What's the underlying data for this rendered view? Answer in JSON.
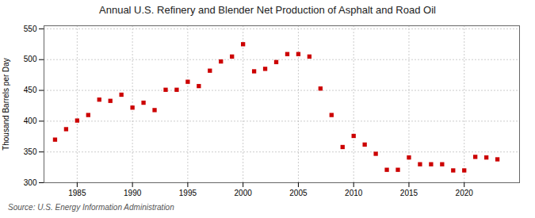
{
  "chart_data": {
    "type": "scatter",
    "title": "Annual U.S. Refinery and Blender Net Production of Asphalt and Road Oil",
    "ylabel": "Thousand Barrels per Day",
    "source": "Source: U.S. Energy Information Administration",
    "x": [
      1983,
      1984,
      1985,
      1986,
      1987,
      1988,
      1989,
      1990,
      1991,
      1992,
      1993,
      1994,
      1995,
      1996,
      1997,
      1998,
      1999,
      2000,
      2001,
      2002,
      2003,
      2004,
      2005,
      2006,
      2007,
      2008,
      2009,
      2010,
      2011,
      2012,
      2013,
      2014,
      2015,
      2016,
      2017,
      2018,
      2019,
      2020,
      2021,
      2022,
      2023
    ],
    "values": [
      370,
      387,
      401,
      410,
      435,
      433,
      443,
      422,
      430,
      418,
      451,
      451,
      464,
      457,
      482,
      497,
      505,
      525,
      481,
      485,
      496,
      509,
      509,
      505,
      453,
      410,
      358,
      376,
      362,
      347,
      321,
      321,
      341,
      330,
      330,
      330,
      320,
      320,
      342,
      341,
      338
    ],
    "color": "#cc0000",
    "marker": "square",
    "xlim": [
      1982,
      2025
    ],
    "ylim": [
      300,
      555
    ],
    "xticks": [
      1985,
      1990,
      1995,
      2000,
      2005,
      2010,
      2015,
      2020
    ],
    "yticks": [
      300,
      350,
      400,
      450,
      500,
      550
    ],
    "grid": true
  }
}
